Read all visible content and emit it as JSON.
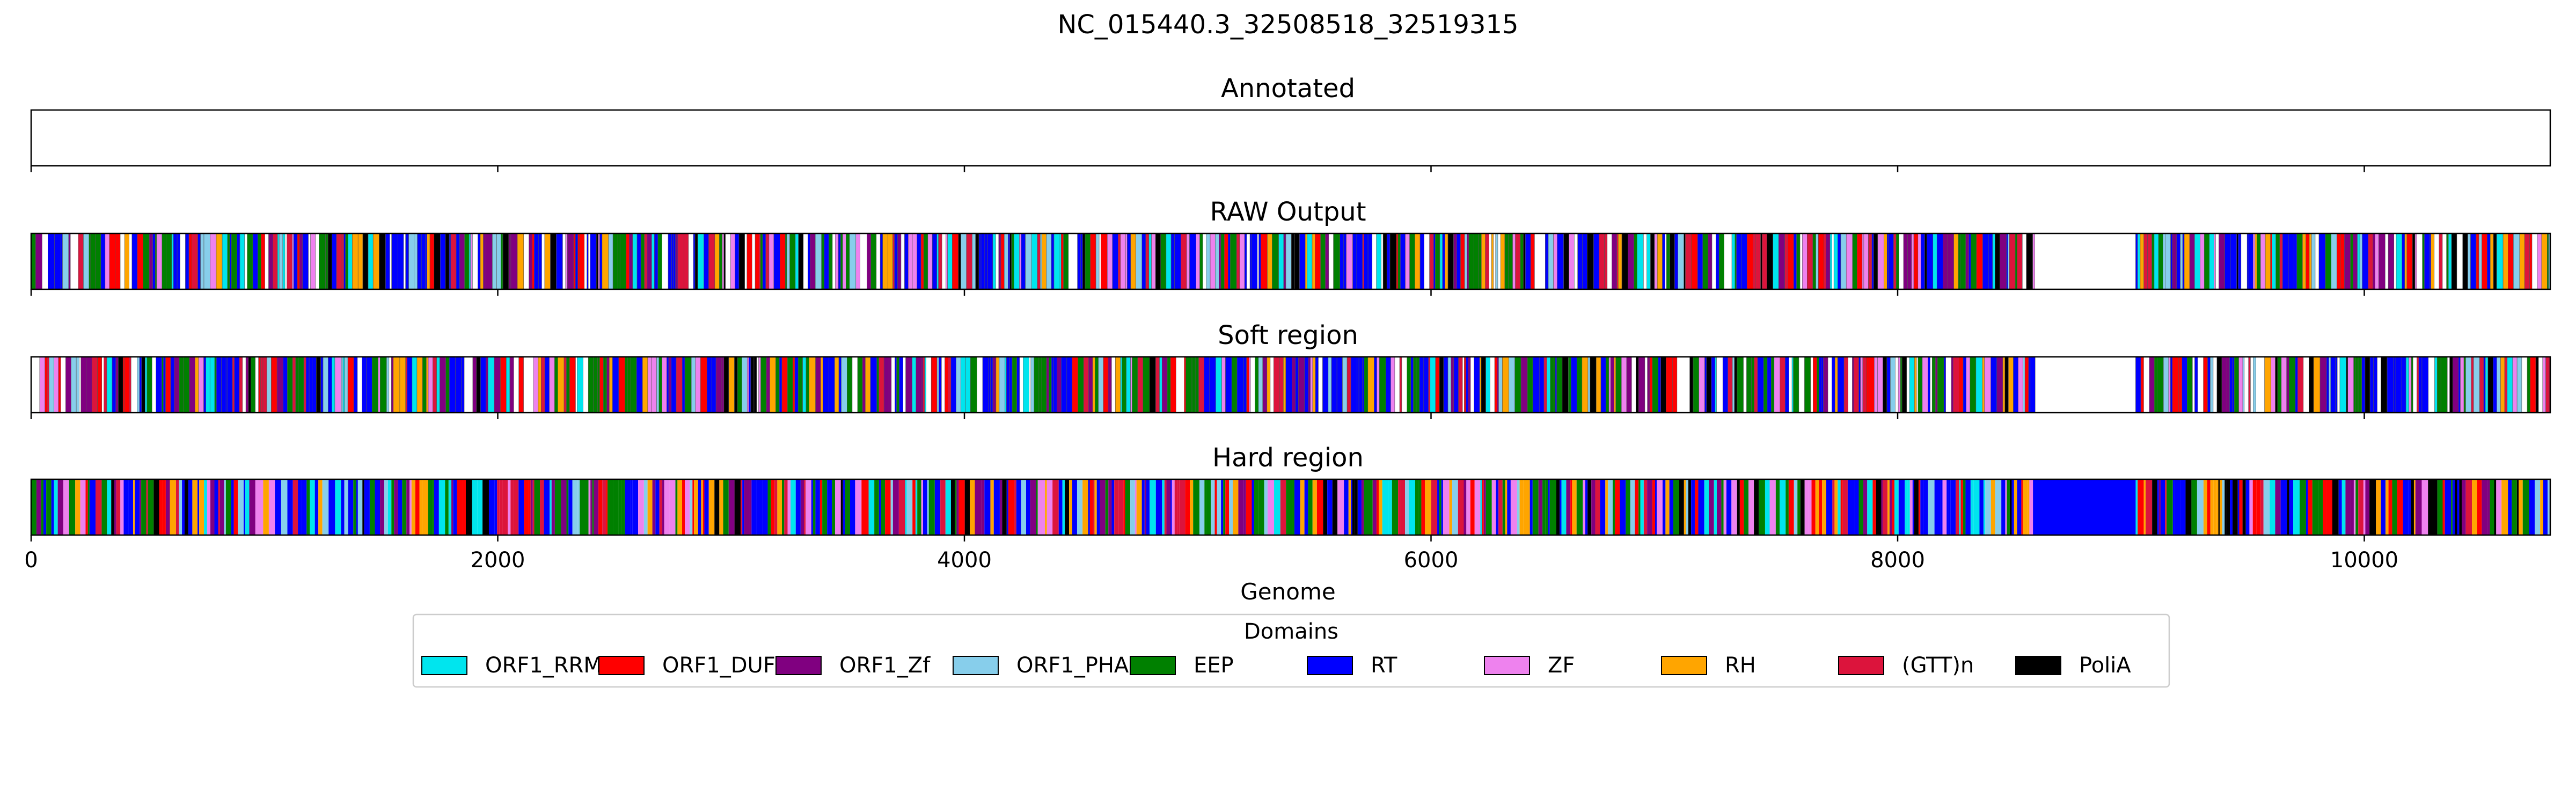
{
  "chart_data": {
    "type": "genome-track",
    "title": "NC_015440.3_32508518_32519315",
    "xlabel": "Genome",
    "xlim": [
      0,
      10797
    ],
    "xticks": [
      0,
      2000,
      4000,
      6000,
      8000,
      10000
    ],
    "xtick_labels": [
      "0",
      "2000",
      "4000",
      "6000",
      "8000",
      "10000"
    ],
    "tracks": [
      {
        "title": "Annotated",
        "segments": []
      },
      {
        "title": "RAW Output",
        "pattern": "dense-mixed",
        "gap": [
          8580,
          9020
        ]
      },
      {
        "title": "Soft region",
        "pattern": "dense-mixed",
        "gap": [
          8580,
          9020
        ]
      },
      {
        "title": "Hard region",
        "pattern": "dense-filled",
        "solid_block": {
          "start": 8580,
          "end": 9020,
          "domain": "RT"
        }
      }
    ],
    "legend": {
      "title": "Domains",
      "position": "bottom-center",
      "items": [
        {
          "name": "ORF1_RRM",
          "color": "#00e5ee"
        },
        {
          "name": "ORF1_DUF",
          "color": "#ff0000"
        },
        {
          "name": "ORF1_Zf",
          "color": "#800080"
        },
        {
          "name": "ORF1_PHA",
          "color": "#87ceeb"
        },
        {
          "name": "EEP",
          "color": "#008000"
        },
        {
          "name": "RT",
          "color": "#0000ff"
        },
        {
          "name": "ZF",
          "color": "#ee82ee"
        },
        {
          "name": "RH",
          "color": "#ffa500"
        },
        {
          "name": "(GTT)n",
          "color": "#dc143c"
        },
        {
          "name": "PoliA",
          "color": "#000000"
        }
      ]
    }
  }
}
